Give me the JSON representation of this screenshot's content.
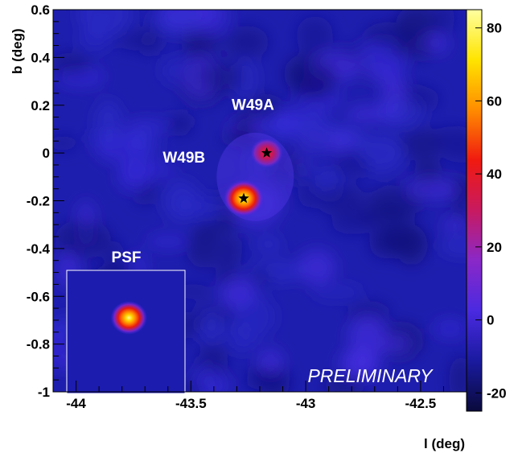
{
  "chart_data": {
    "type": "heatmap",
    "xlabel": "l (deg)",
    "ylabel": "b (deg)",
    "xlim": [
      -44.1,
      -42.3
    ],
    "ylim": [
      -1.0,
      0.6
    ],
    "x_reversed": false,
    "xticks": [
      {
        "value": -44,
        "label": "-44"
      },
      {
        "value": -43.5,
        "label": "-43.5"
      },
      {
        "value": -43,
        "label": "-43"
      },
      {
        "value": -42.5,
        "label": "-42.5"
      }
    ],
    "yticks": [
      {
        "value": 0.6,
        "label": "0.6"
      },
      {
        "value": 0.4,
        "label": "0.4"
      },
      {
        "value": 0.2,
        "label": "0.2"
      },
      {
        "value": 0,
        "label": "0"
      },
      {
        "value": -0.2,
        "label": "-0.2"
      },
      {
        "value": -0.4,
        "label": "-0.4"
      },
      {
        "value": -0.6,
        "label": "-0.6"
      },
      {
        "value": -0.8,
        "label": "-0.8"
      },
      {
        "value": -1,
        "label": "-1"
      }
    ],
    "colorbar": {
      "range": [
        -25,
        85
      ],
      "ticks": [
        {
          "value": 80,
          "label": "80"
        },
        {
          "value": 60,
          "label": "60"
        },
        {
          "value": 40,
          "label": "40"
        },
        {
          "value": 20,
          "label": "20"
        },
        {
          "value": 0,
          "label": "0"
        },
        {
          "value": -20,
          "label": "-20"
        }
      ],
      "colormap": [
        "#0a0a3c",
        "#1a1aa0",
        "#4a2ae0",
        "#8a28c8",
        "#c81a60",
        "#f01a10",
        "#ff8c00",
        "#ffe400",
        "#ffffa0"
      ]
    },
    "sources": [
      {
        "name": "W49A",
        "l": -43.17,
        "b": 0.0,
        "peak": 50,
        "star": true
      },
      {
        "name": "W49B",
        "l": -43.27,
        "b": -0.19,
        "peak": 85,
        "star": true
      }
    ],
    "source_labels": [
      {
        "text": "W49A",
        "l": -43.23,
        "b": 0.18
      },
      {
        "text": "W49B",
        "l": -43.53,
        "b": -0.04
      }
    ],
    "psf": {
      "label": "PSF",
      "l": -43.77,
      "b": -0.69,
      "peak": 85
    },
    "annotation": "PRELIMINARY",
    "grid": false
  }
}
